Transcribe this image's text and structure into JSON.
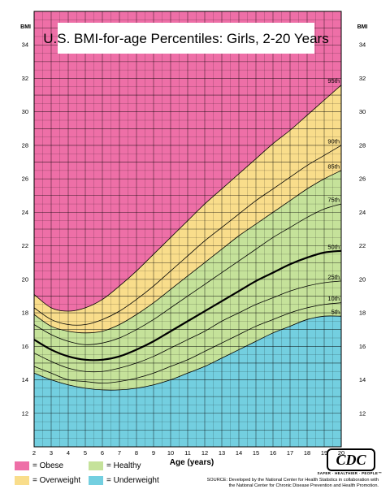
{
  "chart_data": {
    "type": "area",
    "title": "U.S. BMI-for-age Percentiles: Girls, 2-20 Years",
    "xlabel": "Age (years)",
    "ylabel": "BMI",
    "xlim": [
      2,
      20
    ],
    "ylim": [
      10,
      36
    ],
    "xticks": [
      2,
      3,
      4,
      5,
      6,
      7,
      8,
      9,
      10,
      11,
      12,
      13,
      14,
      15,
      16,
      17,
      18,
      19,
      20
    ],
    "yticks": [
      12,
      14,
      16,
      18,
      20,
      22,
      24,
      26,
      28,
      30,
      32,
      34
    ],
    "grid": true,
    "x": [
      2,
      3,
      4,
      5,
      6,
      7,
      8,
      9,
      10,
      11,
      12,
      13,
      14,
      15,
      16,
      17,
      18,
      19,
      20
    ],
    "series": [
      {
        "name": "5th",
        "values": [
          14.4,
          14.0,
          13.7,
          13.5,
          13.4,
          13.4,
          13.5,
          13.7,
          14.0,
          14.4,
          14.8,
          15.3,
          15.8,
          16.3,
          16.8,
          17.2,
          17.6,
          17.8,
          17.8
        ]
      },
      {
        "name": "10th",
        "values": [
          14.8,
          14.4,
          14.0,
          13.9,
          13.8,
          13.9,
          14.1,
          14.4,
          14.8,
          15.2,
          15.7,
          16.2,
          16.7,
          17.2,
          17.6,
          18.0,
          18.3,
          18.5,
          18.6
        ]
      },
      {
        "name": "25th",
        "values": [
          15.6,
          15.1,
          14.7,
          14.5,
          14.5,
          14.7,
          15.0,
          15.4,
          15.9,
          16.4,
          16.9,
          17.5,
          18.0,
          18.5,
          18.9,
          19.3,
          19.6,
          19.8,
          19.9
        ]
      },
      {
        "name": "50th",
        "values": [
          16.4,
          15.8,
          15.4,
          15.2,
          15.2,
          15.4,
          15.8,
          16.3,
          16.9,
          17.5,
          18.1,
          18.7,
          19.3,
          19.9,
          20.4,
          20.9,
          21.3,
          21.6,
          21.7
        ]
      },
      {
        "name": "75th",
        "values": [
          17.3,
          16.7,
          16.3,
          16.1,
          16.2,
          16.5,
          17.0,
          17.6,
          18.3,
          19.0,
          19.7,
          20.4,
          21.1,
          21.8,
          22.5,
          23.1,
          23.7,
          24.2,
          24.5
        ]
      },
      {
        "name": "85th",
        "values": [
          17.9,
          17.2,
          16.9,
          16.8,
          16.9,
          17.3,
          17.9,
          18.6,
          19.4,
          20.2,
          21.0,
          21.8,
          22.6,
          23.3,
          24.0,
          24.7,
          25.4,
          26.0,
          26.5
        ]
      },
      {
        "name": "90th",
        "values": [
          18.3,
          17.6,
          17.3,
          17.3,
          17.6,
          18.1,
          18.8,
          19.6,
          20.5,
          21.4,
          22.3,
          23.1,
          23.9,
          24.7,
          25.4,
          26.1,
          26.8,
          27.4,
          28.0
        ]
      },
      {
        "name": "95th",
        "values": [
          19.1,
          18.3,
          18.1,
          18.3,
          18.8,
          19.6,
          20.5,
          21.5,
          22.5,
          23.5,
          24.5,
          25.4,
          26.3,
          27.2,
          28.1,
          28.9,
          29.8,
          30.7,
          31.6
        ]
      }
    ],
    "zones": [
      {
        "name": "Obese",
        "color": "#EE6FA7"
      },
      {
        "name": "Overweight",
        "color": "#F9DD8B"
      },
      {
        "name": "Healthy",
        "color": "#C5E29A"
      },
      {
        "name": "Underweight",
        "color": "#73CFE0"
      }
    ]
  },
  "legend": {
    "obese": "= Obese",
    "overweight": "= Overweight",
    "healthy": "= Healthy",
    "underweight": "= Underweight"
  },
  "logo": "CDC",
  "tagline": "SAFER · HEALTHIER · PEOPLE™",
  "source": "SOURCE: Developed by the National Center for Health Statistics in collaboration with the National Center for Chronic Disease Prevention and Health Promotion."
}
